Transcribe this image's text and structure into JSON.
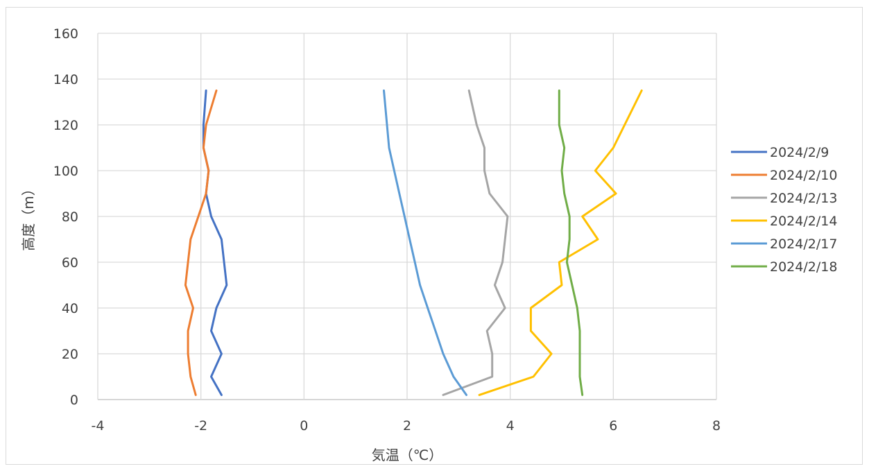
{
  "chart_data": {
    "type": "line",
    "title": "",
    "xlabel": "気温（℃）",
    "ylabel": "高度（m）",
    "xlim": [
      -4,
      8
    ],
    "ylim": [
      0,
      160
    ],
    "xticks": [
      "-4",
      "-2",
      "0",
      "2",
      "4",
      "6",
      "8"
    ],
    "yticks": [
      "0",
      "20",
      "40",
      "60",
      "80",
      "100",
      "120",
      "140",
      "160"
    ],
    "grid": true,
    "legend": "right",
    "series": [
      {
        "name": "2024/2/9",
        "color": "#4472C4",
        "points": [
          [
            -1.6,
            2
          ],
          [
            -1.8,
            10
          ],
          [
            -1.6,
            20
          ],
          [
            -1.8,
            30
          ],
          [
            -1.7,
            40
          ],
          [
            -1.5,
            50
          ],
          [
            -1.55,
            60
          ],
          [
            -1.6,
            70
          ],
          [
            -1.8,
            80
          ],
          [
            -1.9,
            90
          ],
          [
            -1.85,
            100
          ],
          [
            -1.95,
            110
          ],
          [
            -1.95,
            120
          ],
          [
            -1.9,
            135
          ]
        ]
      },
      {
        "name": "2024/2/10",
        "color": "#ED7D31",
        "points": [
          [
            -2.1,
            2
          ],
          [
            -2.2,
            10
          ],
          [
            -2.25,
            20
          ],
          [
            -2.25,
            30
          ],
          [
            -2.15,
            40
          ],
          [
            -2.3,
            50
          ],
          [
            -2.25,
            60
          ],
          [
            -2.2,
            70
          ],
          [
            -2.05,
            80
          ],
          [
            -1.9,
            90
          ],
          [
            -1.85,
            100
          ],
          [
            -1.95,
            110
          ],
          [
            -1.9,
            120
          ],
          [
            -1.7,
            135
          ]
        ]
      },
      {
        "name": "2024/2/13",
        "color": "#A5A5A5",
        "points": [
          [
            2.7,
            2
          ],
          [
            3.65,
            10
          ],
          [
            3.65,
            20
          ],
          [
            3.55,
            30
          ],
          [
            3.9,
            40
          ],
          [
            3.7,
            50
          ],
          [
            3.85,
            60
          ],
          [
            3.9,
            70
          ],
          [
            3.95,
            80
          ],
          [
            3.6,
            90
          ],
          [
            3.5,
            100
          ],
          [
            3.5,
            110
          ],
          [
            3.35,
            120
          ],
          [
            3.2,
            135
          ]
        ]
      },
      {
        "name": "2024/2/14",
        "color": "#FFC000",
        "points": [
          [
            3.4,
            2
          ],
          [
            4.45,
            10
          ],
          [
            4.8,
            20
          ],
          [
            4.4,
            30
          ],
          [
            4.4,
            40
          ],
          [
            5.0,
            50
          ],
          [
            4.95,
            60
          ],
          [
            5.7,
            70
          ],
          [
            5.4,
            80
          ],
          [
            6.05,
            90
          ],
          [
            5.65,
            100
          ],
          [
            6.0,
            110
          ],
          [
            6.55,
            135
          ]
        ]
      },
      {
        "name": "2024/2/17",
        "color": "#5B9BD5",
        "points": [
          [
            3.15,
            2
          ],
          [
            2.9,
            10
          ],
          [
            2.7,
            20
          ],
          [
            2.55,
            30
          ],
          [
            2.4,
            40
          ],
          [
            2.25,
            50
          ],
          [
            2.15,
            60
          ],
          [
            2.05,
            70
          ],
          [
            1.95,
            80
          ],
          [
            1.85,
            90
          ],
          [
            1.75,
            100
          ],
          [
            1.65,
            110
          ],
          [
            1.55,
            135
          ]
        ]
      },
      {
        "name": "2024/2/18",
        "color": "#70AD47",
        "points": [
          [
            5.4,
            2
          ],
          [
            5.35,
            10
          ],
          [
            5.35,
            20
          ],
          [
            5.35,
            30
          ],
          [
            5.3,
            40
          ],
          [
            5.2,
            50
          ],
          [
            5.1,
            60
          ],
          [
            5.15,
            70
          ],
          [
            5.15,
            80
          ],
          [
            5.05,
            90
          ],
          [
            5.0,
            100
          ],
          [
            5.05,
            110
          ],
          [
            4.95,
            120
          ],
          [
            4.95,
            135
          ]
        ]
      }
    ]
  }
}
